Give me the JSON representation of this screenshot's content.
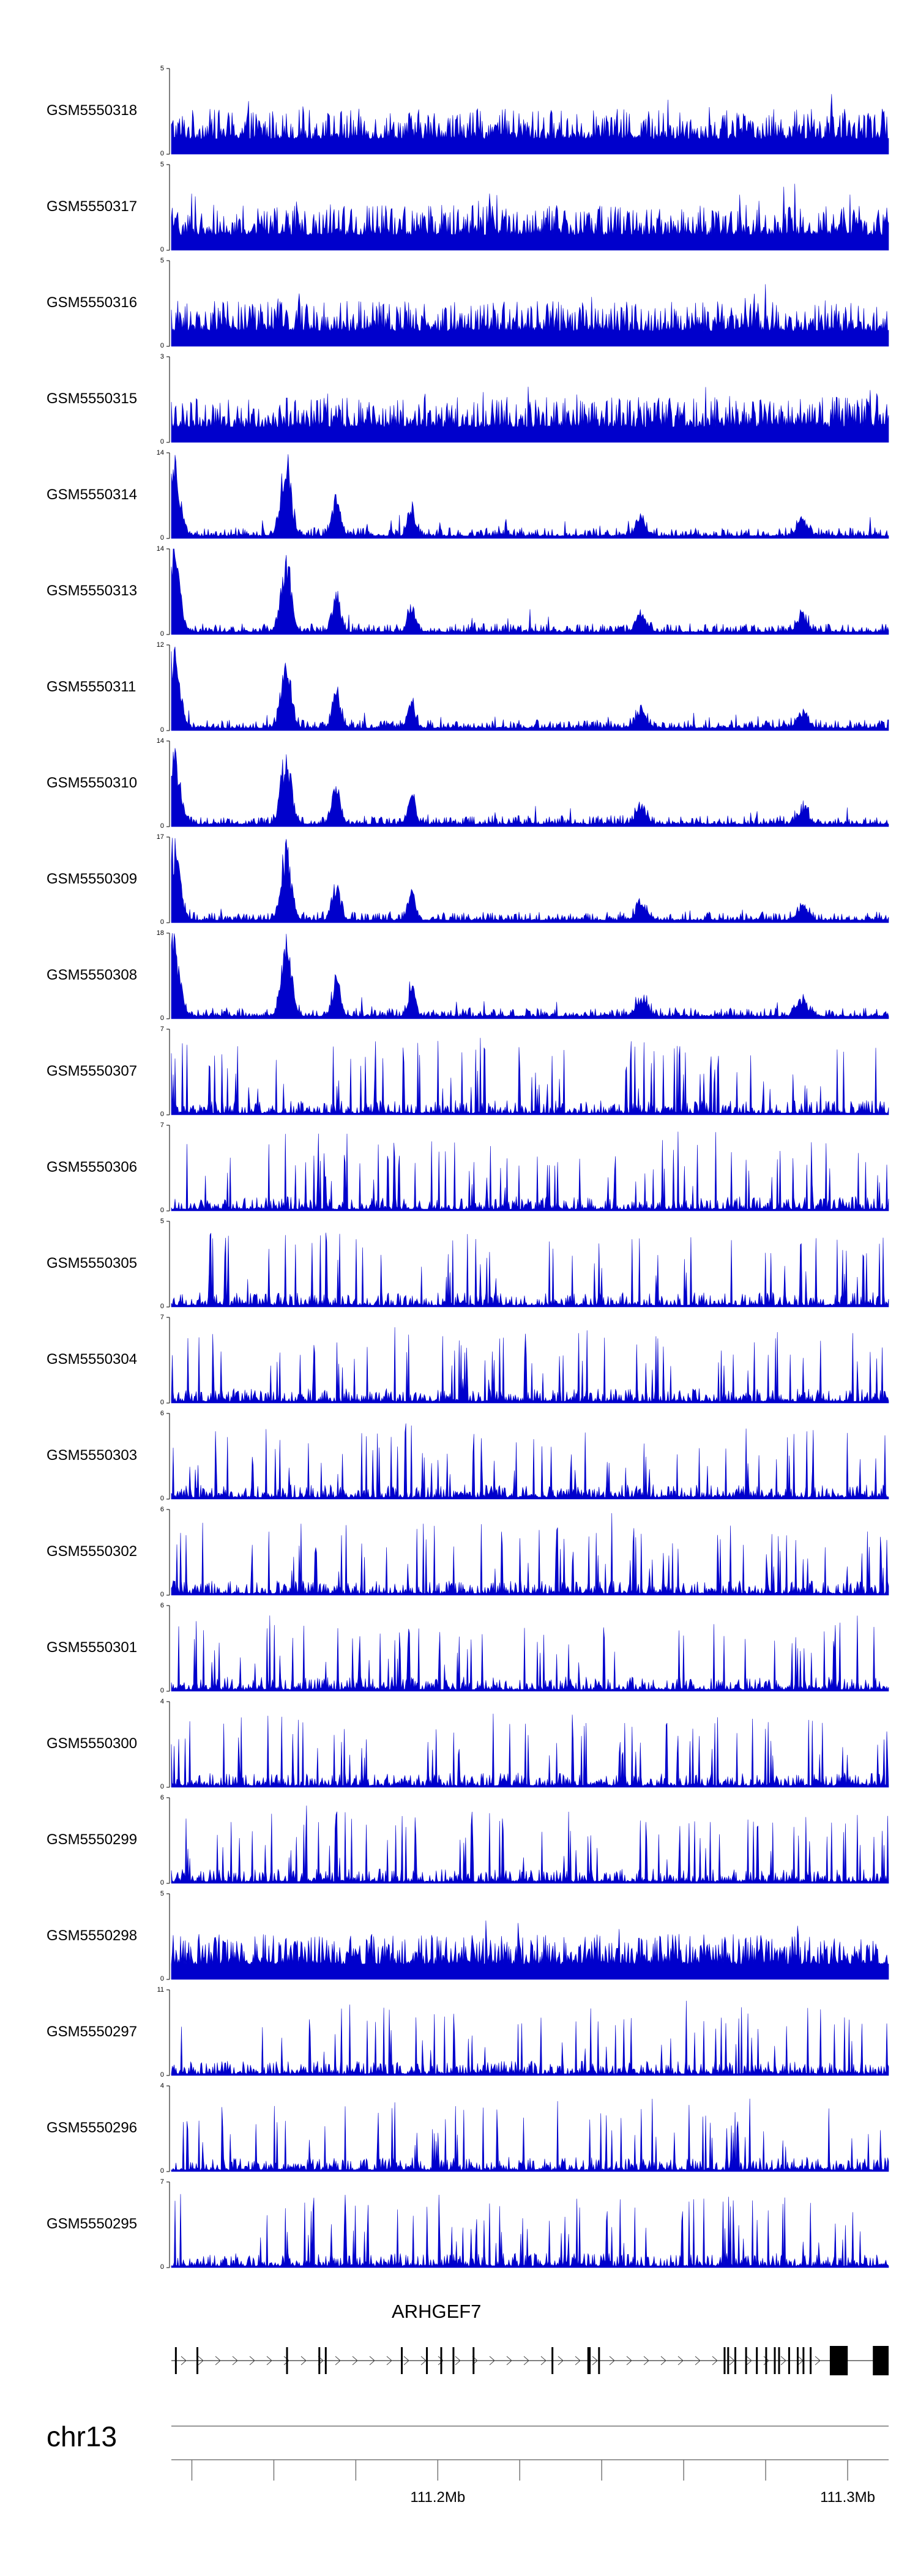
{
  "chart_data": {
    "type": "area",
    "tracks": [
      {
        "name": "GSM5550318",
        "ymax": 5,
        "ymin": 0,
        "profile": "flat"
      },
      {
        "name": "GSM5550317",
        "ymax": 5,
        "ymin": 0,
        "profile": "flat"
      },
      {
        "name": "GSM5550316",
        "ymax": 5,
        "ymin": 0,
        "profile": "flat"
      },
      {
        "name": "GSM5550315",
        "ymax": 3,
        "ymin": 0,
        "profile": "flat"
      },
      {
        "name": "GSM5550314",
        "ymax": 14,
        "ymin": 0,
        "profile": "peaky"
      },
      {
        "name": "GSM5550313",
        "ymax": 14,
        "ymin": 0,
        "profile": "peaky"
      },
      {
        "name": "GSM5550311",
        "ymax": 12,
        "ymin": 0,
        "profile": "peaky"
      },
      {
        "name": "GSM5550310",
        "ymax": 14,
        "ymin": 0,
        "profile": "peaky"
      },
      {
        "name": "GSM5550309",
        "ymax": 17,
        "ymin": 0,
        "profile": "peaky"
      },
      {
        "name": "GSM5550308",
        "ymax": 18,
        "ymin": 0,
        "profile": "peaky"
      },
      {
        "name": "GSM5550307",
        "ymax": 7,
        "ymin": 0,
        "profile": "spiky"
      },
      {
        "name": "GSM5550306",
        "ymax": 7,
        "ymin": 0,
        "profile": "spiky"
      },
      {
        "name": "GSM5550305",
        "ymax": 5,
        "ymin": 0,
        "profile": "spiky"
      },
      {
        "name": "GSM5550304",
        "ymax": 7,
        "ymin": 0,
        "profile": "spiky"
      },
      {
        "name": "GSM5550303",
        "ymax": 6,
        "ymin": 0,
        "profile": "spiky"
      },
      {
        "name": "GSM5550302",
        "ymax": 6,
        "ymin": 0,
        "profile": "spiky"
      },
      {
        "name": "GSM5550301",
        "ymax": 6,
        "ymin": 0,
        "profile": "spiky"
      },
      {
        "name": "GSM5550300",
        "ymax": 4,
        "ymin": 0,
        "profile": "spiky"
      },
      {
        "name": "GSM5550299",
        "ymax": 6,
        "ymin": 0,
        "profile": "spiky"
      },
      {
        "name": "GSM5550298",
        "ymax": 5,
        "ymin": 0,
        "profile": "flat"
      },
      {
        "name": "GSM5550297",
        "ymax": 11,
        "ymin": 0,
        "profile": "spiky"
      },
      {
        "name": "GSM5550296",
        "ymax": 4,
        "ymin": 0,
        "profile": "spiky"
      },
      {
        "name": "GSM5550295",
        "ymax": 7,
        "ymin": 0,
        "profile": "spiky"
      }
    ],
    "track_color": "#0000CC",
    "gene": {
      "name": "ARHGEF7",
      "strand": "+"
    },
    "chromosome": "chr13",
    "x_axis": {
      "range_mb": [
        111.135,
        111.31
      ],
      "tick_labels": [
        "111.2Mb",
        "111.3Mb"
      ],
      "tick_label_values_mb": [
        111.2,
        111.3
      ],
      "minor_tick_step_mb": 0.02
    }
  }
}
